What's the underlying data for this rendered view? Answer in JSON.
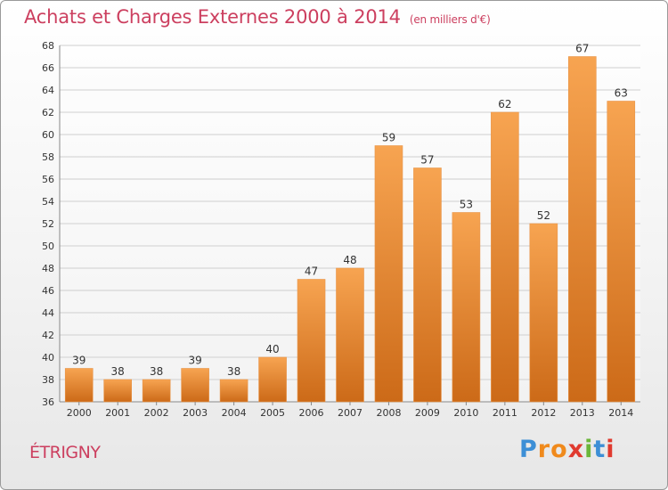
{
  "header": {
    "title": "Achats et Charges Externes 2000 à 2014",
    "unit": "(en milliers d'€)"
  },
  "footer": {
    "location": "ÉTRIGNY",
    "logo": [
      "P",
      "r",
      "o",
      "x",
      "i",
      "t",
      "i"
    ]
  },
  "colors": {
    "accent": "#cc3f5f",
    "bar_top": "#f7a451",
    "bar_bottom": "#cc6a18",
    "logo": [
      "#3d8fd6",
      "#f08a1c",
      "#f08a1c",
      "#e03a2f",
      "#6bb63a",
      "#3d8fd6",
      "#e03a2f"
    ]
  },
  "chart_data": {
    "type": "bar",
    "title": "Achats et Charges Externes 2000 à 2014",
    "subtitle": "(en milliers d'€)",
    "categories": [
      "2000",
      "2001",
      "2002",
      "2003",
      "2004",
      "2005",
      "2006",
      "2007",
      "2008",
      "2009",
      "2010",
      "2011",
      "2012",
      "2013",
      "2014"
    ],
    "values": [
      39,
      38,
      38,
      39,
      38,
      40,
      47,
      48,
      59,
      57,
      53,
      62,
      52,
      67,
      63
    ],
    "xlabel": "",
    "ylabel": "",
    "ylim": [
      36,
      68
    ],
    "yticks": [
      36,
      38,
      40,
      42,
      44,
      46,
      48,
      50,
      52,
      54,
      56,
      58,
      60,
      62,
      64,
      66,
      68
    ],
    "grid": true,
    "legend": "none"
  }
}
